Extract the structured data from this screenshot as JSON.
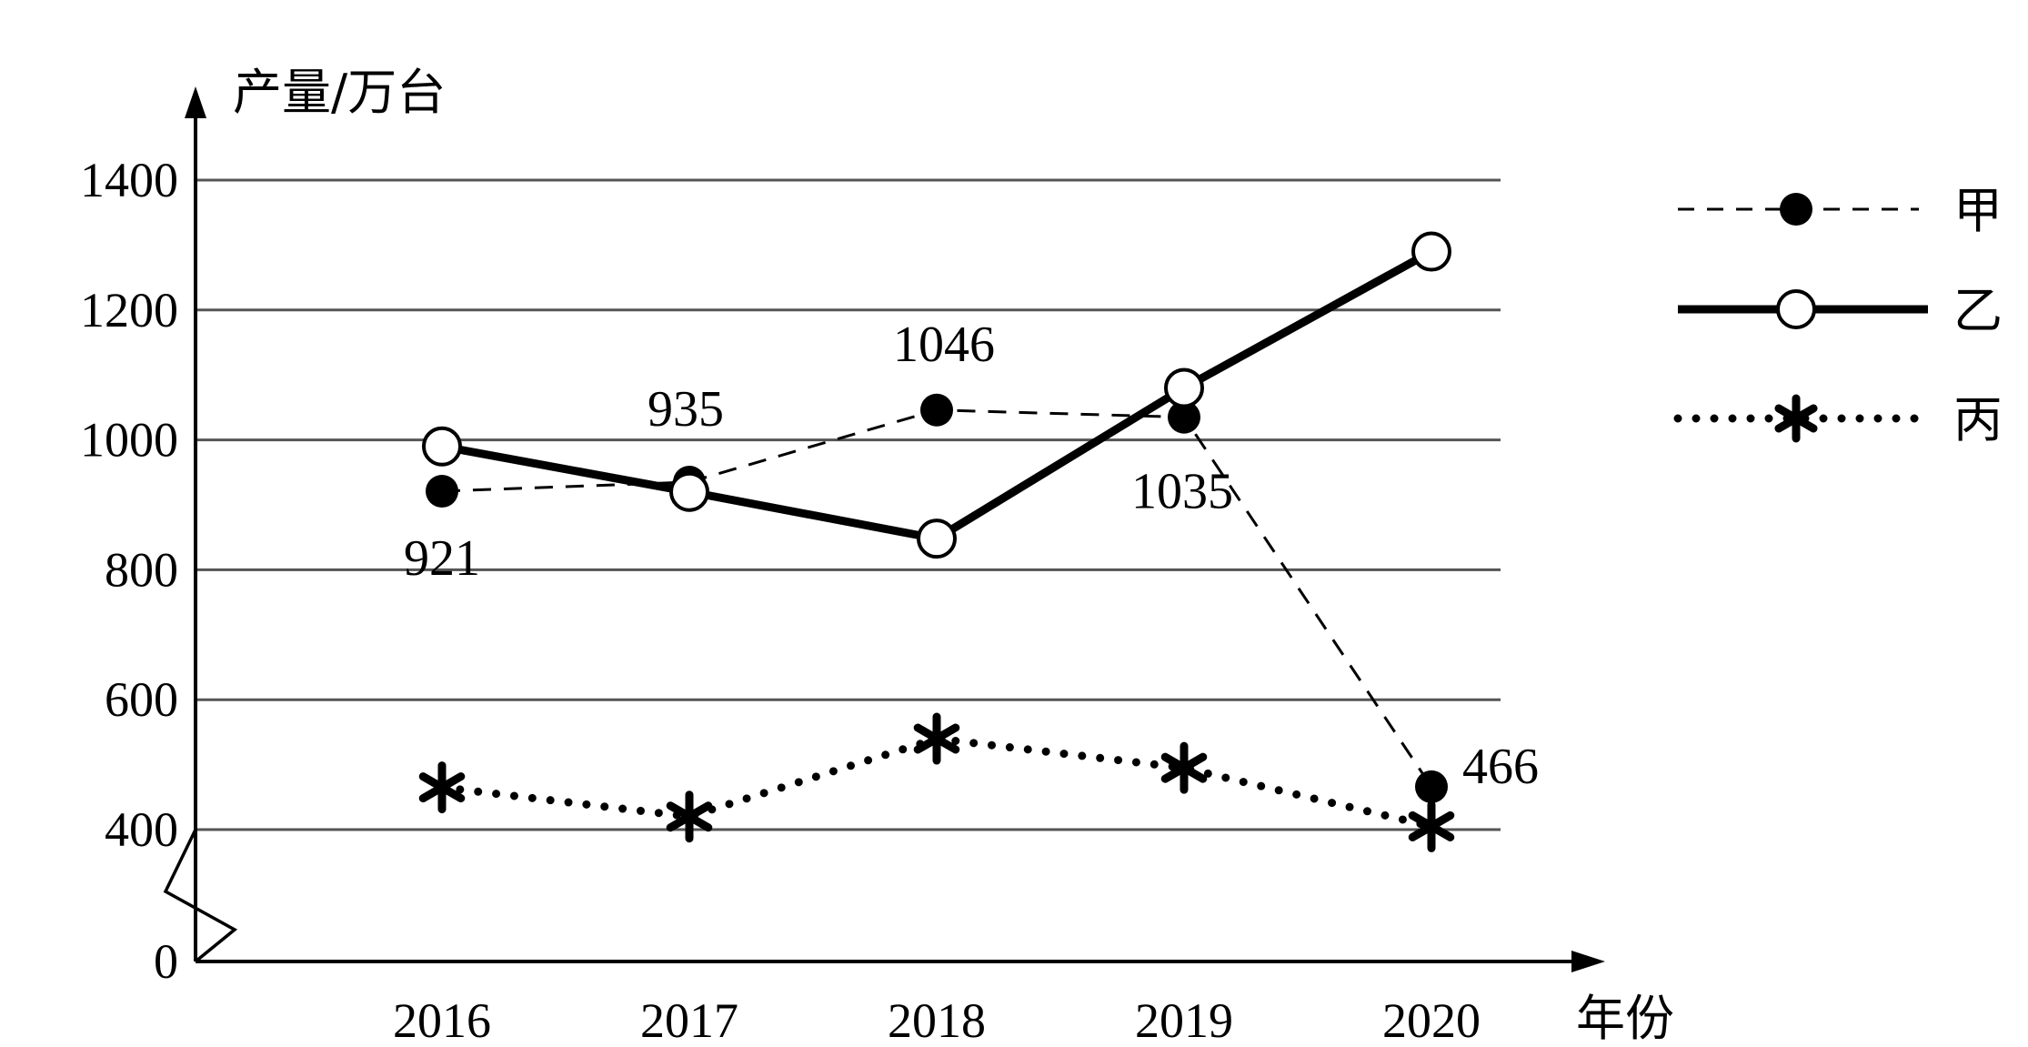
{
  "chart_data": {
    "type": "line",
    "ylabel": "产量/万台",
    "xlabel": "年份",
    "categories": [
      "2016",
      "2017",
      "2018",
      "2019",
      "2020"
    ],
    "y_ticks": [
      "0",
      "400",
      "600",
      "800",
      "1000",
      "1200",
      "1400"
    ],
    "y_axis_break": true,
    "grid": true,
    "legend_position": "top-right",
    "series": [
      {
        "name": "甲",
        "style": "dashed",
        "marker": "filled-circle",
        "values": [
          921,
          935,
          1046,
          1035,
          466
        ],
        "data_labels": [
          "921",
          "935",
          "1046",
          "1035",
          "466"
        ]
      },
      {
        "name": "乙",
        "style": "solid-thick",
        "marker": "hollow-circle",
        "values": [
          990,
          920,
          848,
          1080,
          1290
        ]
      },
      {
        "name": "丙",
        "style": "dotted",
        "marker": "asterisk",
        "values": [
          465,
          420,
          540,
          495,
          405
        ]
      }
    ]
  }
}
